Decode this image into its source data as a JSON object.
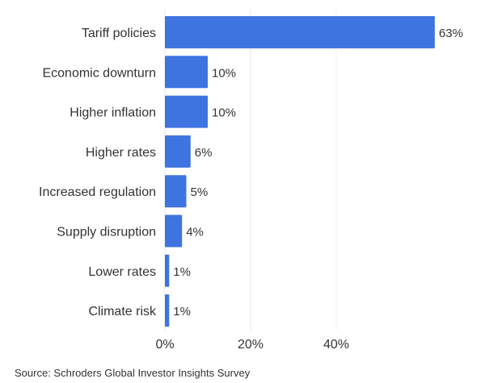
{
  "chart_data": {
    "type": "bar",
    "orientation": "horizontal",
    "categories": [
      "Tariff policies",
      "Economic downturn",
      "Higher inflation",
      "Higher rates",
      "Increased regulation",
      "Supply disruption",
      "Lower rates",
      "Climate risk"
    ],
    "values": [
      63,
      10,
      10,
      6,
      5,
      4,
      1,
      1
    ],
    "value_labels": [
      "63%",
      "10%",
      "10%",
      "6%",
      "5%",
      "4%",
      "1%",
      "1%"
    ],
    "xticks": [
      0,
      20,
      40
    ],
    "xtick_labels": [
      "0%",
      "20%",
      "40%"
    ],
    "xlim": [
      0,
      74
    ],
    "grid": true,
    "bar_color": "#3e74e0",
    "gridline_color": "#e6e6e6"
  },
  "source": "Source: Schroders Global Investor Insights Survey"
}
